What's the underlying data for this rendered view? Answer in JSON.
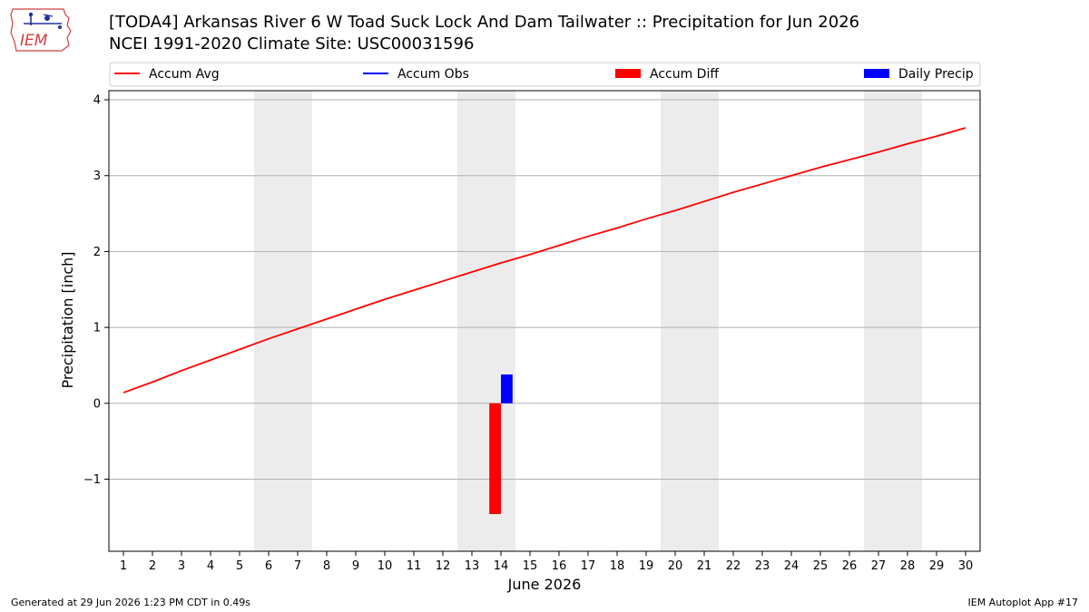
{
  "header": {
    "title_line1": "[TODA4] Arkansas River 6 W Toad Suck Lock And Dam Tailwater :: Precipitation for Jun 2026",
    "title_line2": "NCEI 1991-2020 Climate Site: USC00031596"
  },
  "logo": {
    "text": "IEM"
  },
  "footer": {
    "generated": "Generated at 29 Jun 2026 1:23 PM CDT in 0.49s",
    "app": "IEM Autoplot App #17"
  },
  "chart_data": {
    "type": "line",
    "xlabel": "June 2026",
    "ylabel": "Precipitation [inch]",
    "xlim": [
      0.5,
      30.5
    ],
    "ylim": [
      -1.95,
      4.12
    ],
    "yticks": [
      -1,
      0,
      1,
      2,
      3,
      4
    ],
    "ytick_labels": [
      "−1",
      "0",
      "1",
      "2",
      "3",
      "4"
    ],
    "xticks": [
      1,
      2,
      3,
      4,
      5,
      6,
      7,
      8,
      9,
      10,
      11,
      12,
      13,
      14,
      15,
      16,
      17,
      18,
      19,
      20,
      21,
      22,
      23,
      24,
      25,
      26,
      27,
      28,
      29,
      30
    ],
    "grid": "horizontal",
    "legend_position": "top",
    "weekend_shading": [
      [
        6,
        7
      ],
      [
        13,
        14
      ],
      [
        20,
        21
      ],
      [
        27,
        28
      ]
    ],
    "legend": [
      {
        "label": "Accum Avg",
        "kind": "line",
        "color": "#ff0000"
      },
      {
        "label": "Accum Obs",
        "kind": "line",
        "color": "#0000ff"
      },
      {
        "label": "Accum Diff",
        "kind": "bar",
        "color": "#ff0000"
      },
      {
        "label": "Daily Precip",
        "kind": "bar",
        "color": "#0000ff"
      }
    ],
    "series": [
      {
        "name": "Accum Avg",
        "kind": "line",
        "color": "#ff0000",
        "x": [
          1,
          2,
          3,
          4,
          5,
          6,
          7,
          8,
          9,
          10,
          11,
          12,
          13,
          14,
          15,
          16,
          17,
          18,
          19,
          20,
          21,
          22,
          23,
          24,
          25,
          26,
          27,
          28,
          29,
          30
        ],
        "values": [
          0.14,
          0.28,
          0.43,
          0.57,
          0.71,
          0.85,
          0.98,
          1.11,
          1.24,
          1.37,
          1.49,
          1.61,
          1.73,
          1.85,
          1.96,
          2.08,
          2.2,
          2.31,
          2.43,
          2.54,
          2.66,
          2.78,
          2.89,
          3.0,
          3.11,
          3.21,
          3.31,
          3.42,
          3.52,
          3.63
        ]
      },
      {
        "name": "Accum Diff",
        "kind": "bar",
        "color": "#ff0000",
        "x": [
          14
        ],
        "values": [
          -1.46
        ]
      },
      {
        "name": "Daily Precip",
        "kind": "bar",
        "color": "#0000ff",
        "x": [
          14
        ],
        "values": [
          0.38
        ]
      }
    ]
  }
}
